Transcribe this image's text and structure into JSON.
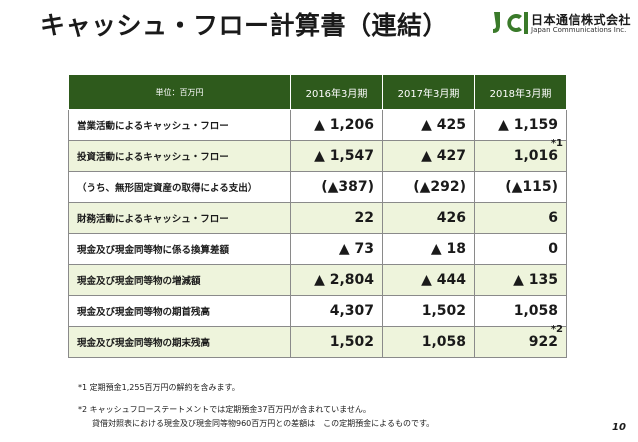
{
  "title": "キャッシュ・フロー計算書（連結）",
  "logo": {
    "mark": "JCI",
    "name": "日本通信株式会社",
    "sub": "Japan Communications Inc."
  },
  "table": {
    "header": [
      "単位：百万円",
      "2016年3月期",
      "2017年3月期",
      "2018年3月期"
    ],
    "rows": [
      {
        "label": "営業活動によるキャッシュ・フロー",
        "values": [
          "▲ 1,206",
          "▲ 425",
          "▲ 1,159"
        ],
        "marks": [
          "",
          "",
          ""
        ]
      },
      {
        "label": "投資活動によるキャッシュ・フロー",
        "values": [
          "▲ 1,547",
          "▲ 427",
          "1,016"
        ],
        "marks": [
          "",
          "",
          "*1"
        ]
      },
      {
        "label": "（うち、無形固定資産の取得による支出）",
        "values": [
          "(▲387)",
          "(▲292)",
          "(▲115)"
        ],
        "marks": [
          "",
          "",
          ""
        ]
      },
      {
        "label": "財務活動によるキャッシュ・フロー",
        "values": [
          "22",
          "426",
          "6"
        ],
        "marks": [
          "",
          "",
          ""
        ]
      },
      {
        "label": "現金及び現金同等物に係る換算差額",
        "values": [
          "▲ 73",
          "▲ 18",
          "0"
        ],
        "marks": [
          "",
          "",
          ""
        ]
      },
      {
        "label": "現金及び現金同等物の増減額",
        "values": [
          "▲ 2,804",
          "▲ 444",
          "▲ 135"
        ],
        "marks": [
          "",
          "",
          ""
        ]
      },
      {
        "label": "現金及び現金同等物の期首残高",
        "values": [
          "4,307",
          "1,502",
          "1,058"
        ],
        "marks": [
          "",
          "",
          ""
        ]
      },
      {
        "label": "現金及び現金同等物の期末残高",
        "values": [
          "1,502",
          "1,058",
          "922"
        ],
        "marks": [
          "",
          "",
          "*2"
        ]
      }
    ]
  },
  "notes": {
    "note1": "*1 定期預金1,255百万円の解約を含みます。",
    "note2a": "*2 キャッシュフローステートメントでは定期預金37百万円が含まれていません。",
    "note2b": "貸借対照表における現金及び現金同等物960百万円との差額は　この定期預金によるものです。"
  },
  "page_number": "10",
  "colors": {
    "header_bg": "#2e5a1c",
    "alt_row_bg": "#eef4dc",
    "logo_green": "#3a7a2a"
  }
}
